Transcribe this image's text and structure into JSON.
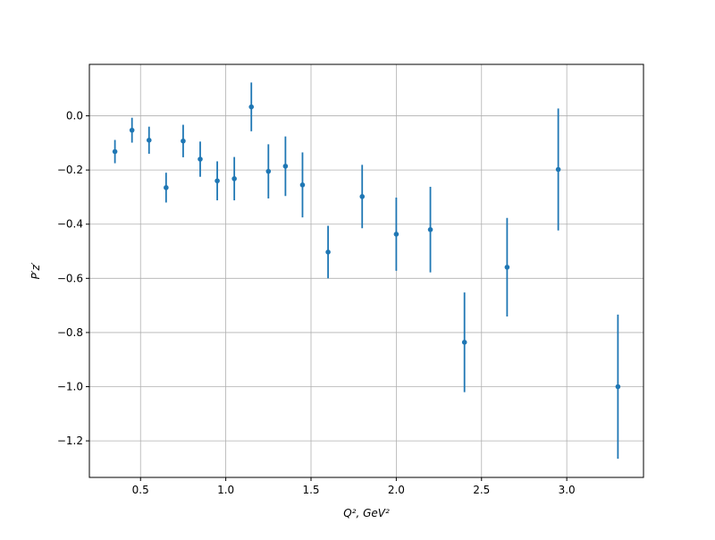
{
  "chart_data": {
    "type": "scatter",
    "xlabel": "Q², GeV²",
    "ylabel": "P′z′",
    "x": [
      0.35,
      0.45,
      0.55,
      0.65,
      0.75,
      0.85,
      0.95,
      1.05,
      1.15,
      1.25,
      1.35,
      1.45,
      1.6,
      1.8,
      2.0,
      2.2,
      2.4,
      2.65,
      2.95,
      3.3
    ],
    "values": [
      -0.132,
      -0.053,
      -0.09,
      -0.265,
      -0.093,
      -0.16,
      -0.24,
      -0.232,
      0.033,
      -0.205,
      -0.186,
      -0.255,
      -0.503,
      -0.298,
      -0.437,
      -0.42,
      -0.836,
      -0.559,
      -0.198,
      -1.0
    ],
    "errors": [
      0.043,
      0.046,
      0.05,
      0.055,
      0.06,
      0.065,
      0.072,
      0.08,
      0.09,
      0.1,
      0.11,
      0.12,
      0.097,
      0.117,
      0.135,
      0.158,
      0.184,
      0.182,
      0.225,
      0.266
    ],
    "color": "#1f77b4",
    "xlim": [
      0.2,
      3.45
    ],
    "ylim": [
      -1.335,
      0.19
    ],
    "xticks": [
      0.5,
      {
        "value": 1,
        "label": "1.0"
      },
      1.5,
      {
        "value": 2,
        "label": "2.0"
      },
      2.5,
      {
        "value": 3,
        "label": "3.0"
      }
    ],
    "yticks": [
      {
        "value": -1.2,
        "label": "−1.2"
      },
      {
        "value": -1.0,
        "label": "−1.0"
      },
      {
        "value": -0.8,
        "label": "−0.8"
      },
      {
        "value": -0.6,
        "label": "−0.6"
      },
      {
        "value": -0.4,
        "label": "−0.4"
      },
      {
        "value": -0.2,
        "label": "−0.2"
      },
      {
        "value": 0,
        "label": "0.0"
      }
    ],
    "grid": true
  }
}
